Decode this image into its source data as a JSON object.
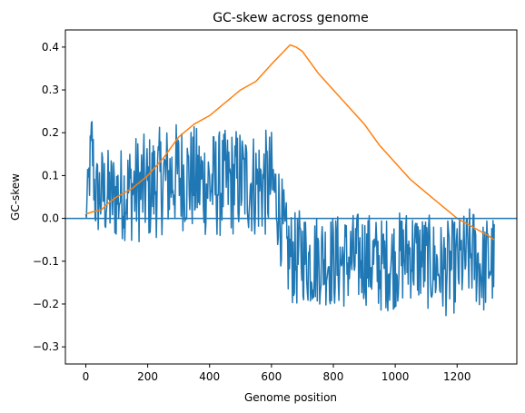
{
  "chart_data": {
    "type": "line",
    "title": "GC-skew across genome",
    "xlabel": "Genome position",
    "ylabel": "GC-skew",
    "xlim": [
      -66,
      1393
    ],
    "ylim": [
      -0.34,
      0.44
    ],
    "xticks": [
      0,
      200,
      400,
      600,
      800,
      1000,
      1200
    ],
    "xtick_labels": [
      "0",
      "200",
      "400",
      "600",
      "800",
      "1000",
      "1200"
    ],
    "yticks": [
      -0.3,
      -0.2,
      -0.1,
      0.0,
      0.1,
      0.2,
      0.3,
      0.4
    ],
    "ytick_labels": [
      "−0.3",
      "−0.2",
      "−0.1",
      "0.0",
      "0.1",
      "0.2",
      "0.3",
      "0.4"
    ],
    "grid": false,
    "hline": {
      "y": 0.0,
      "color": "#1f77b4"
    },
    "series": [
      {
        "color": "#1f77b4",
        "style": "noisy",
        "x": [
          0,
          10,
          20,
          30,
          50,
          80,
          120,
          160,
          200,
          250,
          300,
          350,
          400,
          450,
          500,
          550,
          600,
          620,
          650,
          680,
          700,
          720,
          760,
          800,
          850,
          900,
          950,
          1000,
          1050,
          1100,
          1150,
          1200,
          1250,
          1280,
          1300,
          1320
        ],
        "y": [
          0.0,
          0.09,
          0.18,
          0.05,
          0.06,
          0.05,
          0.06,
          0.07,
          0.07,
          0.09,
          0.1,
          0.09,
          0.08,
          0.08,
          0.09,
          0.08,
          0.08,
          0.04,
          -0.08,
          -0.1,
          -0.08,
          -0.1,
          -0.09,
          -0.1,
          -0.1,
          -0.09,
          -0.11,
          -0.1,
          -0.08,
          -0.1,
          -0.12,
          -0.11,
          -0.08,
          -0.12,
          -0.1,
          -0.1
        ],
        "amplitude": [
          0.02,
          0.05,
          0.06,
          0.06,
          0.07,
          0.07,
          0.07,
          0.08,
          0.08,
          0.08,
          0.08,
          0.08,
          0.08,
          0.08,
          0.08,
          0.08,
          0.08,
          0.07,
          0.07,
          0.07,
          0.07,
          0.07,
          0.07,
          0.07,
          0.07,
          0.07,
          0.07,
          0.07,
          0.07,
          0.07,
          0.07,
          0.07,
          0.07,
          0.07,
          0.07,
          0.07
        ]
      },
      {
        "color": "#ff7f0e",
        "style": "smooth",
        "x": [
          0,
          20,
          50,
          80,
          100,
          150,
          200,
          250,
          300,
          350,
          400,
          450,
          500,
          550,
          600,
          640,
          660,
          680,
          700,
          750,
          800,
          850,
          900,
          950,
          1000,
          1050,
          1100,
          1150,
          1200,
          1250,
          1300,
          1320
        ],
        "y": [
          0.01,
          0.015,
          0.02,
          0.04,
          0.05,
          0.07,
          0.1,
          0.14,
          0.19,
          0.22,
          0.24,
          0.27,
          0.3,
          0.32,
          0.36,
          0.39,
          0.405,
          0.4,
          0.39,
          0.34,
          0.3,
          0.26,
          0.22,
          0.17,
          0.13,
          0.09,
          0.06,
          0.03,
          0.0,
          -0.02,
          -0.04,
          -0.05
        ]
      }
    ]
  }
}
